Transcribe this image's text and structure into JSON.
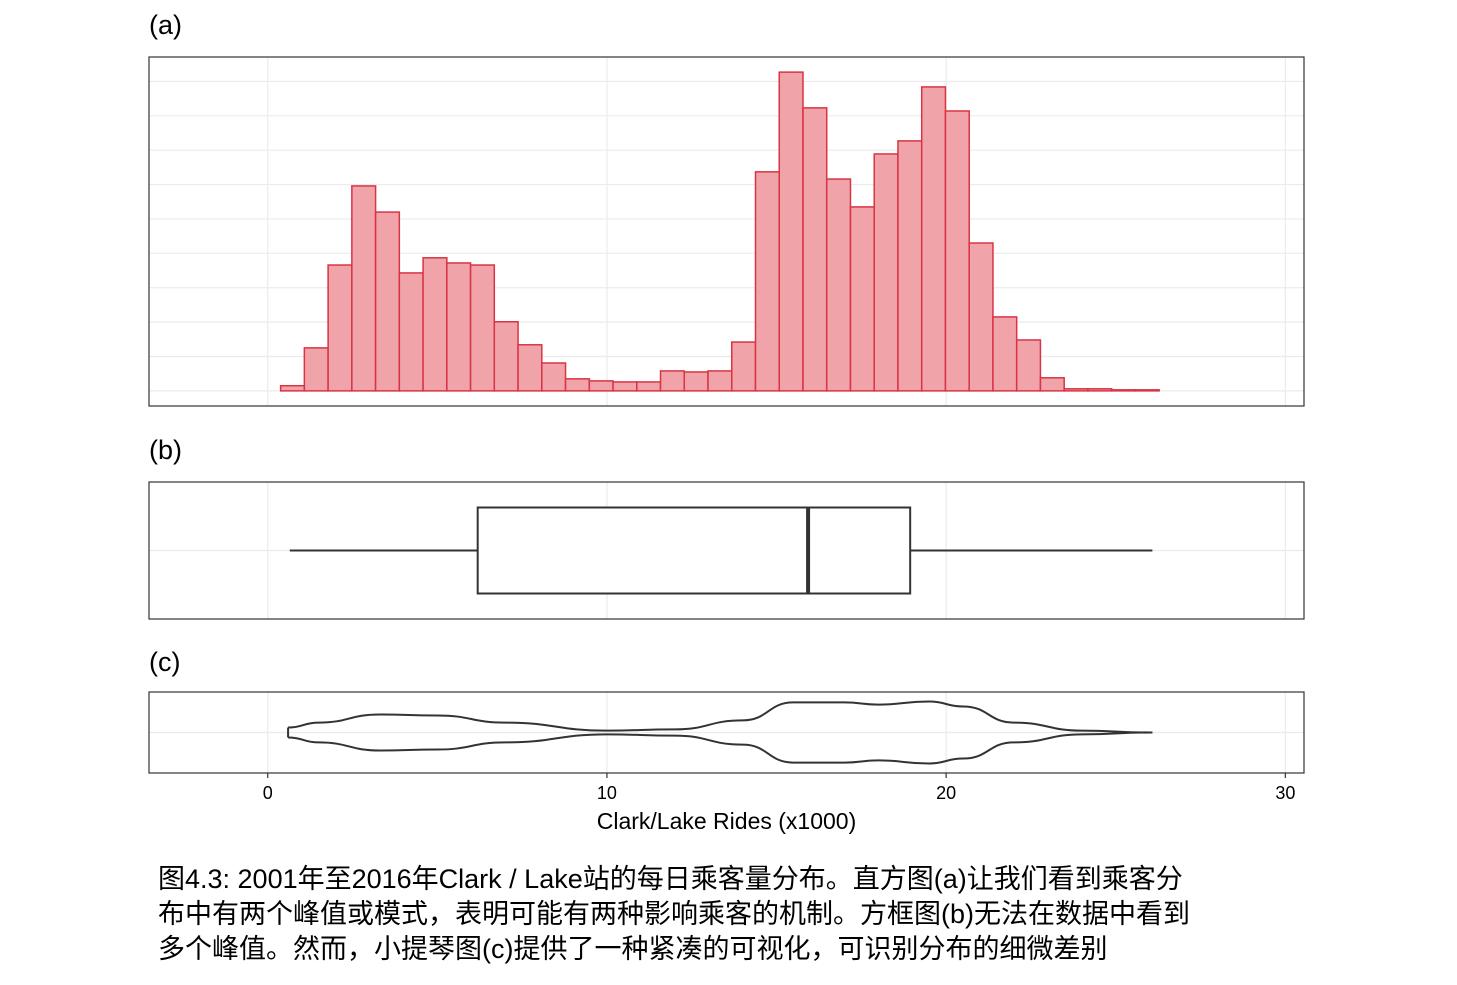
{
  "chart_data": [
    {
      "type": "histogram",
      "label": "(a)",
      "bins": [
        0.38,
        1.08,
        1.78,
        2.48,
        3.18,
        3.88,
        4.58,
        5.28,
        5.98,
        6.68,
        7.38,
        8.08,
        8.78,
        9.48,
        10.18,
        10.88,
        11.58,
        12.28,
        12.98,
        13.68,
        14.38,
        15.08,
        15.78,
        16.48,
        17.18,
        17.88,
        18.58,
        19.28,
        19.98,
        20.68,
        21.38,
        22.08,
        22.78,
        23.48,
        24.18,
        24.88,
        25.58,
        26.28
      ],
      "counts": [
        15,
        125,
        366,
        596,
        520,
        343,
        387,
        372,
        366,
        201,
        134,
        81,
        35,
        29,
        26,
        26,
        58,
        55,
        58,
        142,
        637,
        927,
        823,
        616,
        535,
        689,
        727,
        884,
        814,
        430,
        215,
        148,
        38,
        6,
        6,
        3,
        3
      ],
      "color": "#f0a3a8",
      "edge_color": "#d93444",
      "xlim": [
        -3.5,
        30.55
      ],
      "ylim": [
        -44,
        971
      ],
      "ygrid": [
        0,
        100,
        200,
        300,
        400,
        500,
        600,
        700,
        800,
        900
      ],
      "grid": true
    },
    {
      "type": "box",
      "label": "(b)",
      "whisker_low": 0.65,
      "q1": 6.19,
      "median": 15.93,
      "q3": 18.94,
      "whisker_high": 26.08,
      "color": "#333333",
      "xlim": [
        -3.5,
        30.55
      ],
      "grid": true
    },
    {
      "type": "violin",
      "label": "(c)",
      "x": [
        0.6,
        1.5,
        3.3,
        5,
        7,
        10,
        12,
        14,
        15.5,
        17,
        18,
        19.5,
        20.5,
        22,
        24,
        26.08
      ],
      "density": [
        0.16,
        0.32,
        0.58,
        0.55,
        0.32,
        0.06,
        0.1,
        0.39,
        0.97,
        0.97,
        0.9,
        1,
        0.84,
        0.32,
        0.06,
        0
      ],
      "color": "#333333",
      "xlim": [
        -3.5,
        30.55
      ],
      "xticks": [
        0,
        10,
        20,
        30
      ],
      "xlabel": "Clark/Lake Rides (x1000)",
      "grid": true
    }
  ],
  "caption": [
    "图4.3: 2001年至2016年Clark / Lake站的每日乘客量分布。直方图(a)让我们看到乘客分",
    "布中有两个峰值或模式，表明可能有两种影响乘客的机制。方框图(b)无法在数据中看到",
    "多个峰值。然而，小提琴图(c)提供了一种紧凑的可视化，可识别分布的细微差别"
  ]
}
